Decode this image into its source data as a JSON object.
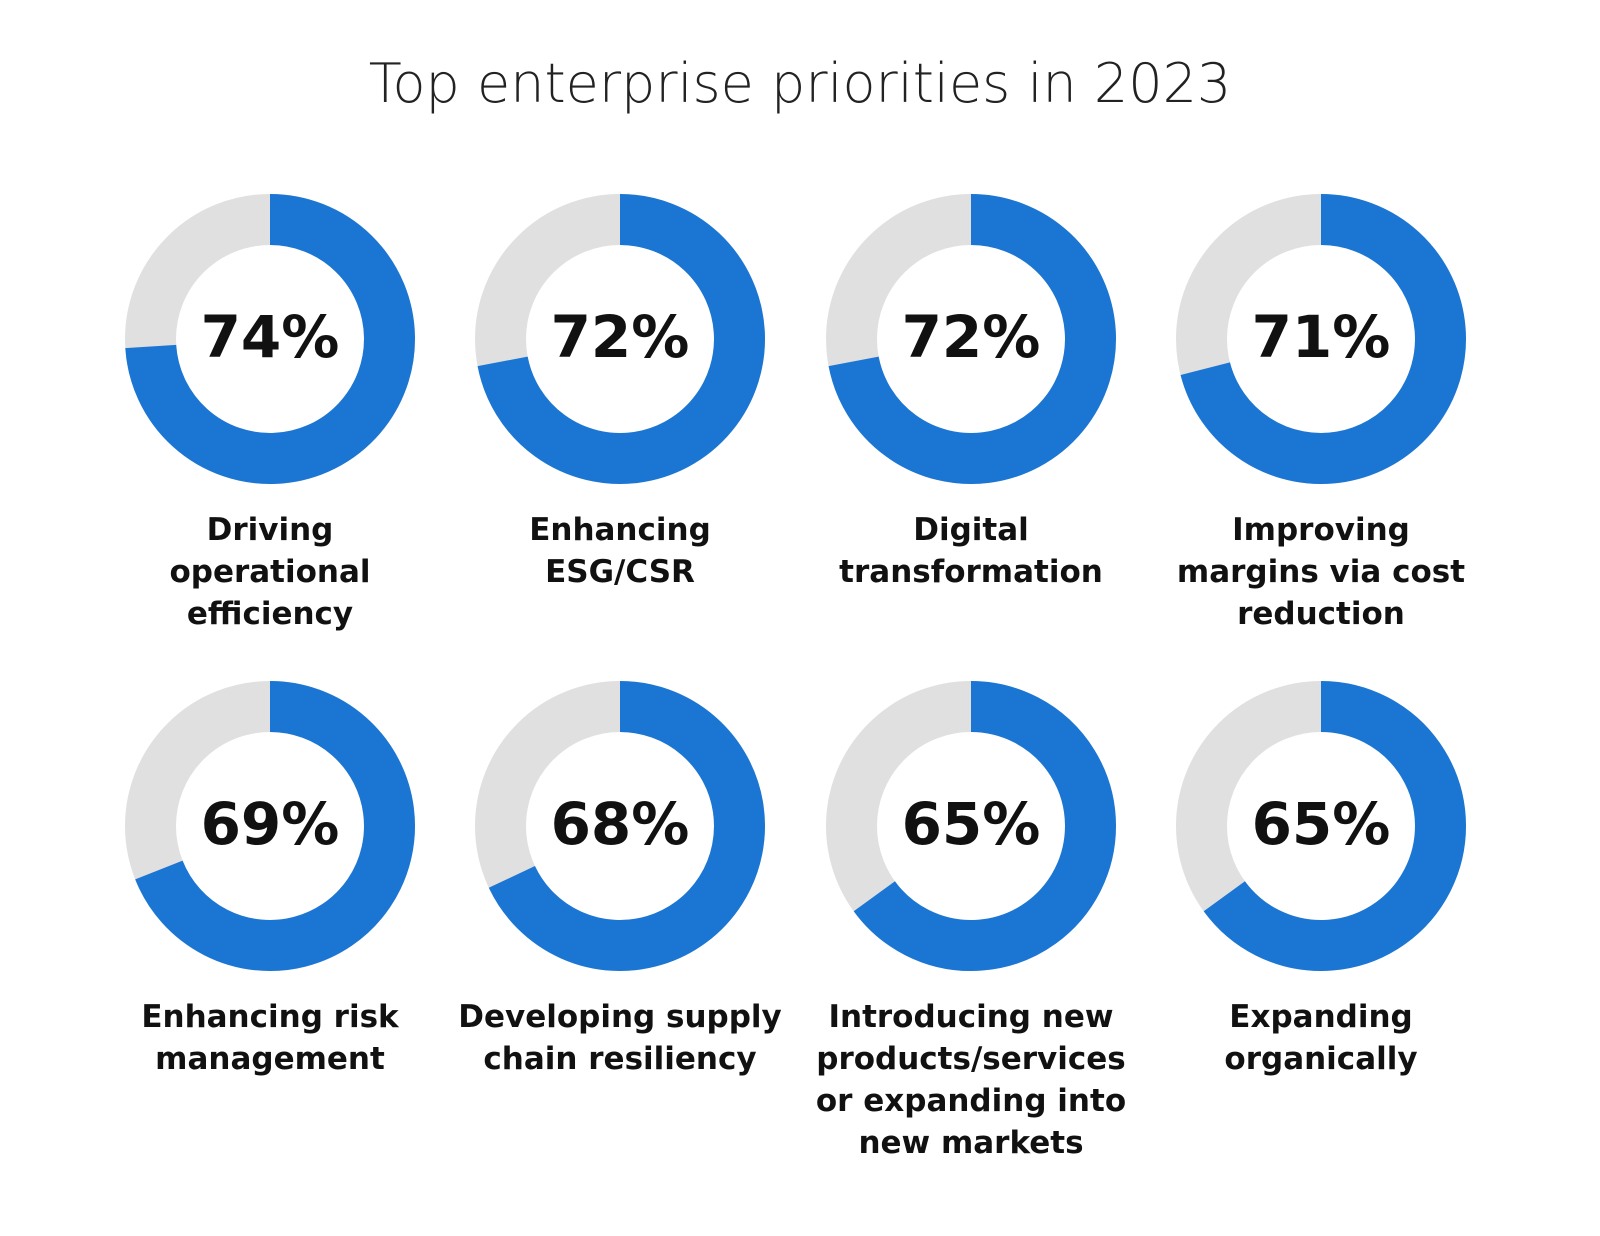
{
  "chart_data": {
    "type": "donut",
    "title": "Top enterprise priorities in 2023",
    "categories": [
      "Driving operational efficiency",
      "Enhancing ESG/CSR",
      "Digital transformation",
      "Improving margins via cost reduction",
      "Enhancing risk management",
      "Developing supply chain resiliency",
      "Introducing new products/services or expanding into new markets",
      "Expanding organically"
    ],
    "values": [
      74,
      72,
      72,
      71,
      69,
      68,
      65,
      65
    ],
    "value_labels": [
      "74%",
      "72%",
      "72%",
      "71%",
      "69%",
      "68%",
      "65%",
      "65%"
    ],
    "color": "#1b76d3",
    "track_color": "#e0e0e0"
  }
}
